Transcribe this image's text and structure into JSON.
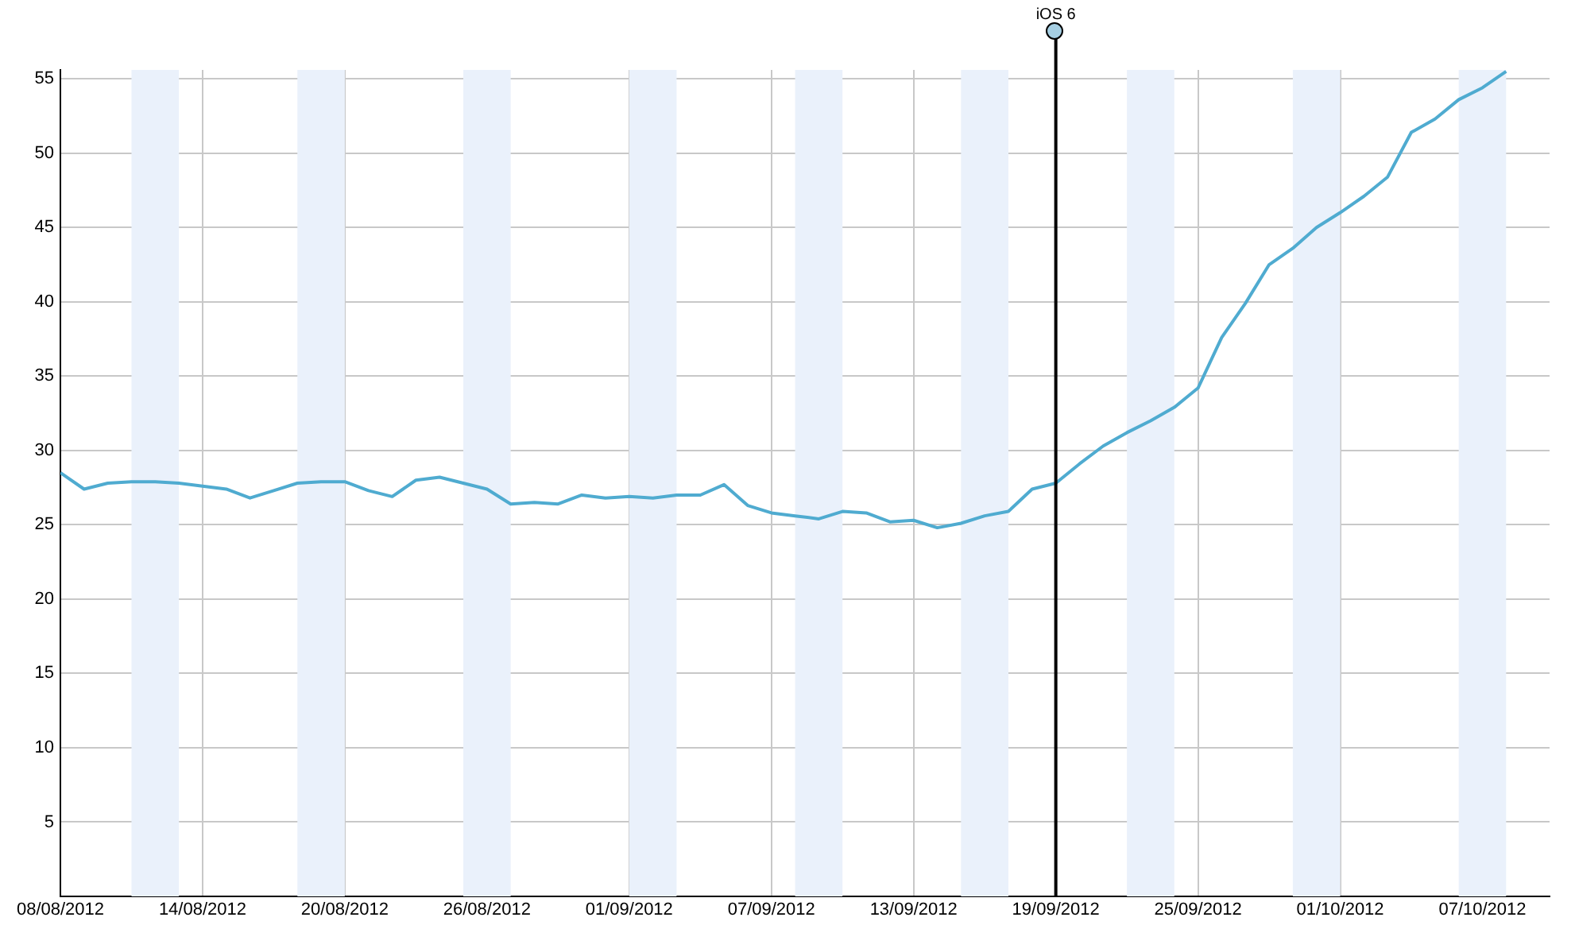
{
  "chart_data": {
    "type": "line",
    "x": [
      "2012-08-08",
      "2012-08-09",
      "2012-08-10",
      "2012-08-11",
      "2012-08-12",
      "2012-08-13",
      "2012-08-14",
      "2012-08-15",
      "2012-08-16",
      "2012-08-17",
      "2012-08-18",
      "2012-08-19",
      "2012-08-20",
      "2012-08-21",
      "2012-08-22",
      "2012-08-23",
      "2012-08-24",
      "2012-08-25",
      "2012-08-26",
      "2012-08-27",
      "2012-08-28",
      "2012-08-29",
      "2012-08-30",
      "2012-08-31",
      "2012-09-01",
      "2012-09-02",
      "2012-09-03",
      "2012-09-04",
      "2012-09-05",
      "2012-09-06",
      "2012-09-07",
      "2012-09-08",
      "2012-09-09",
      "2012-09-10",
      "2012-09-11",
      "2012-09-12",
      "2012-09-13",
      "2012-09-14",
      "2012-09-15",
      "2012-09-16",
      "2012-09-17",
      "2012-09-18",
      "2012-09-19",
      "2012-09-20",
      "2012-09-21",
      "2012-09-22",
      "2012-09-23",
      "2012-09-24",
      "2012-09-25",
      "2012-09-26",
      "2012-09-27",
      "2012-09-28",
      "2012-09-29",
      "2012-09-30",
      "2012-10-01",
      "2012-10-02",
      "2012-10-03",
      "2012-10-04",
      "2012-10-05",
      "2012-10-06",
      "2012-10-07",
      "2012-10-08"
    ],
    "series": [
      {
        "color": "#4fabd0",
        "values": [
          28.5,
          27.4,
          27.8,
          27.9,
          27.9,
          27.8,
          27.6,
          27.4,
          26.8,
          27.3,
          27.8,
          27.9,
          27.9,
          27.3,
          26.9,
          28.0,
          28.2,
          27.8,
          27.4,
          26.4,
          26.5,
          26.4,
          27.0,
          26.8,
          26.9,
          26.8,
          27.0,
          27.0,
          27.7,
          26.3,
          25.8,
          25.6,
          25.4,
          25.9,
          25.8,
          25.2,
          25.3,
          24.8,
          25.1,
          25.6,
          25.9,
          27.4,
          27.8,
          29.1,
          30.3,
          31.2,
          32.0,
          32.9,
          34.2,
          37.6,
          39.9,
          42.5,
          43.6,
          45.0,
          46.0,
          47.1,
          48.4,
          51.4,
          52.3,
          53.6,
          54.4,
          55.5
        ]
      }
    ],
    "xlim": [
      "2012-08-08",
      "2012-10-09T20:00"
    ],
    "xticks": [
      {
        "value": "2012-08-08",
        "label": "08/08/2012"
      },
      {
        "value": "2012-08-14",
        "label": "14/08/2012"
      },
      {
        "value": "2012-08-20",
        "label": "20/08/2012"
      },
      {
        "value": "2012-08-26",
        "label": "26/08/2012"
      },
      {
        "value": "2012-09-01",
        "label": "01/09/2012"
      },
      {
        "value": "2012-09-07",
        "label": "07/09/2012"
      },
      {
        "value": "2012-09-13",
        "label": "13/09/2012"
      },
      {
        "value": "2012-09-19",
        "label": "19/09/2012"
      },
      {
        "value": "2012-09-25",
        "label": "25/09/2012"
      },
      {
        "value": "2012-10-01",
        "label": "01/10/2012"
      },
      {
        "value": "2012-10-07",
        "label": "07/10/2012"
      }
    ],
    "ylim": [
      0,
      55.6
    ],
    "yticks": [
      5,
      10,
      15,
      20,
      25,
      30,
      35,
      40,
      45,
      50,
      55
    ],
    "grid": true,
    "legend": false,
    "bands": [
      {
        "axis": "x",
        "from": "2012-08-11",
        "to": "2012-08-13",
        "color": "#eaf1fb"
      },
      {
        "axis": "x",
        "from": "2012-08-18",
        "to": "2012-08-20",
        "color": "#eaf1fb"
      },
      {
        "axis": "x",
        "from": "2012-08-25",
        "to": "2012-08-27",
        "color": "#eaf1fb"
      },
      {
        "axis": "x",
        "from": "2012-09-01",
        "to": "2012-09-03",
        "color": "#eaf1fb"
      },
      {
        "axis": "x",
        "from": "2012-09-08",
        "to": "2012-09-10",
        "color": "#eaf1fb"
      },
      {
        "axis": "x",
        "from": "2012-09-15",
        "to": "2012-09-17",
        "color": "#eaf1fb"
      },
      {
        "axis": "x",
        "from": "2012-09-22",
        "to": "2012-09-24",
        "color": "#eaf1fb"
      },
      {
        "axis": "x",
        "from": "2012-09-29",
        "to": "2012-10-01",
        "color": "#eaf1fb"
      },
      {
        "axis": "x",
        "from": "2012-10-06",
        "to": "2012-10-08",
        "color": "#eaf1fb"
      }
    ],
    "ref_lines": [
      {
        "axis": "x",
        "value": "2012-09-19",
        "label": "iOS 6",
        "color": "#000000"
      }
    ]
  }
}
